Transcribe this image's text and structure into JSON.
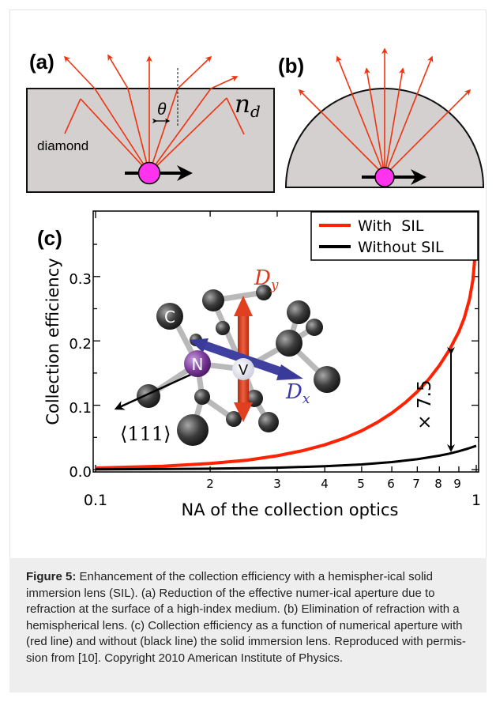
{
  "panels": {
    "a": {
      "label": "(a)",
      "theta": "θ",
      "index": "n",
      "index_sub": "d",
      "medium": "diamond"
    },
    "b": {
      "label": "(b)"
    },
    "c": {
      "label": "(c)",
      "molecule": {
        "carbon": "C",
        "nitrogen": "N",
        "vacancy": "V",
        "dy": "D",
        "dy_sub": "y",
        "dx": "D",
        "dx_sub": "x",
        "axis": "⟨111⟩"
      },
      "factor": "× 7.5"
    }
  },
  "chart_data": {
    "type": "line",
    "xlabel": "NA of the collection optics",
    "ylabel": "Collection efficiency",
    "x_scale": "log",
    "xlim": [
      0.1,
      1.0
    ],
    "ylim": [
      0.0,
      0.36
    ],
    "x_tick_labels": [
      "0.1",
      "2",
      "3",
      "4",
      "5",
      "6",
      "7",
      "8",
      "9",
      "1"
    ],
    "y_tick_labels": [
      "0.0",
      "0.1",
      "0.2",
      "0.3"
    ],
    "legend_position": "top-right",
    "series": [
      {
        "name": "With  SIL",
        "color": "#ff2200",
        "x": [
          0.1,
          0.15,
          0.2,
          0.25,
          0.3,
          0.35,
          0.4,
          0.45,
          0.5,
          0.55,
          0.6,
          0.65,
          0.7,
          0.75,
          0.8,
          0.85,
          0.9,
          0.93,
          0.96,
          0.98,
          1.0
        ],
        "y": [
          0.0025,
          0.0053,
          0.0096,
          0.0146,
          0.0215,
          0.0294,
          0.0384,
          0.0488,
          0.0603,
          0.0735,
          0.088,
          0.1037,
          0.121,
          0.1403,
          0.1618,
          0.186,
          0.214,
          0.2355,
          0.265,
          0.295,
          0.355
        ]
      },
      {
        "name": "Without SIL",
        "color": "#000000",
        "x": [
          0.1,
          0.2,
          0.3,
          0.4,
          0.5,
          0.6,
          0.7,
          0.8,
          0.85,
          0.9,
          0.95,
          1.0
        ],
        "y": [
          0.0003,
          0.0013,
          0.0029,
          0.0051,
          0.008,
          0.0117,
          0.0161,
          0.0216,
          0.0248,
          0.0285,
          0.0325,
          0.037
        ]
      }
    ]
  },
  "caption": {
    "label": "Figure 5:",
    "text": " Enhancement of the collection efficiency with a hemispher-ical solid immersion lens (SIL). (a) Reduction of the effective numer-ical aperture due to refraction at the surface of a high-index medium. (b) Elimination of refraction with a hemispherical lens. (c) Collection efficiency as a function of numerical aperture with (red line) and without (black line) the solid immersion lens. Reproduced with permis-sion from [10]. Copyright 2010 American Institute of Physics."
  }
}
